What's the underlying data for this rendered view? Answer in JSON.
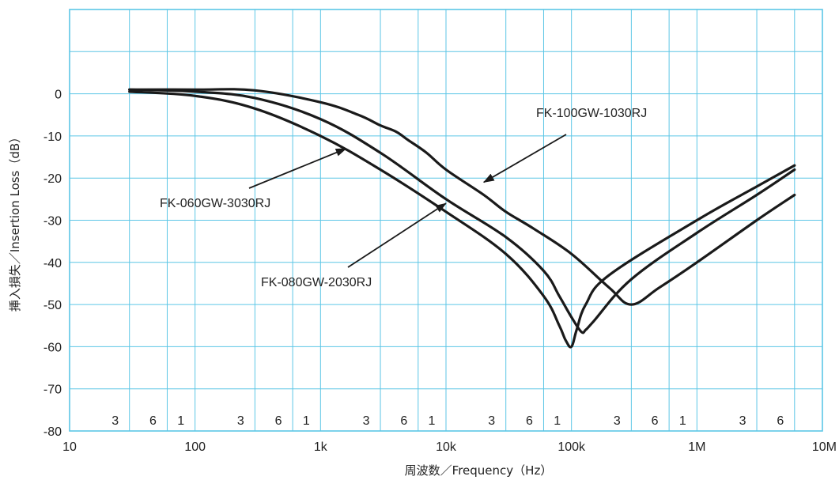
{
  "chart_data": {
    "type": "line",
    "title": "",
    "xlabel": "周波数／Frequency（Hz）",
    "ylabel": "挿入損失／Insertion Loss（dB）",
    "x_scale": "log",
    "xlim": [
      10,
      10000000
    ],
    "ylim": [
      -80,
      20
    ],
    "grid": true,
    "x_ticks": [
      {
        "value": 10,
        "label": "10"
      },
      {
        "value": 100,
        "label": "100"
      },
      {
        "value": 1000,
        "label": "1k"
      },
      {
        "value": 10000,
        "label": "10k"
      },
      {
        "value": 100000,
        "label": "100k"
      },
      {
        "value": 1000000,
        "label": "1M"
      },
      {
        "value": 10000000,
        "label": "10M"
      }
    ],
    "minor_tick_labels": [
      {
        "value": 30,
        "label": "3"
      },
      {
        "value": 60,
        "label": "6"
      },
      {
        "value": 100,
        "label": "1"
      },
      {
        "value": 300,
        "label": "3"
      },
      {
        "value": 600,
        "label": "6"
      },
      {
        "value": 1000,
        "label": "1"
      },
      {
        "value": 3000,
        "label": "3"
      },
      {
        "value": 6000,
        "label": "6"
      },
      {
        "value": 10000,
        "label": "1"
      },
      {
        "value": 30000,
        "label": "3"
      },
      {
        "value": 60000,
        "label": "6"
      },
      {
        "value": 100000,
        "label": "1"
      },
      {
        "value": 300000,
        "label": "3"
      },
      {
        "value": 600000,
        "label": "6"
      },
      {
        "value": 1000000,
        "label": "1"
      },
      {
        "value": 3000000,
        "label": "3"
      },
      {
        "value": 6000000,
        "label": "6"
      }
    ],
    "y_ticks": [
      {
        "value": 0,
        "label": "0"
      },
      {
        "value": -10,
        "label": "-10"
      },
      {
        "value": -20,
        "label": "-20"
      },
      {
        "value": -30,
        "label": "-30"
      },
      {
        "value": -40,
        "label": "-40"
      },
      {
        "value": -50,
        "label": "-50"
      },
      {
        "value": -60,
        "label": "-60"
      },
      {
        "value": -70,
        "label": "-70"
      },
      {
        "value": -80,
        "label": "-80"
      }
    ],
    "series": [
      {
        "name": "FK-100GW-1030RJ",
        "x": [
          30,
          100,
          300,
          1000,
          2000,
          3000,
          4000,
          5000,
          7000,
          10000,
          20000,
          30000,
          50000,
          100000,
          200000,
          300000,
          500000,
          1000000,
          3000000,
          6000000
        ],
        "y": [
          1,
          1,
          0.8,
          -2,
          -5,
          -7.5,
          -9,
          -11,
          -14,
          -18,
          -24,
          -28,
          -32,
          -38,
          -46,
          -50,
          -46,
          -40,
          -30,
          -24
        ]
      },
      {
        "name": "FK-080GW-2030RJ",
        "x": [
          30,
          100,
          300,
          1000,
          3000,
          10000,
          30000,
          60000,
          80000,
          100000,
          120000,
          130000,
          150000,
          300000,
          1000000,
          3000000,
          6000000
        ],
        "y": [
          1,
          0.5,
          -1,
          -6,
          -14,
          -25,
          -34,
          -42,
          -48,
          -53,
          -56.5,
          -56,
          -54,
          -44,
          -33,
          -24,
          -18
        ]
      },
      {
        "name": "FK-060GW-3030RJ",
        "x": [
          30,
          100,
          300,
          1000,
          3000,
          10000,
          30000,
          60000,
          80000,
          90000,
          100000,
          110000,
          130000,
          200000,
          1000000,
          3000000,
          6000000
        ],
        "y": [
          0.5,
          -0.5,
          -3.5,
          -10,
          -18,
          -28,
          -38,
          -48,
          -55,
          -58.5,
          -60,
          -56,
          -50,
          -43,
          -30,
          -22,
          -17
        ]
      }
    ],
    "annotations": [
      {
        "text": "FK-100GW-1030RJ",
        "target_series": 0,
        "arrow_to": [
          20000,
          -21
        ]
      },
      {
        "text": "FK-060GW-3030RJ",
        "target_series": 2,
        "arrow_to": [
          1600,
          -13
        ]
      },
      {
        "text": "FK-080GW-2030RJ",
        "target_series": 1,
        "arrow_to": [
          10000,
          -26
        ]
      }
    ],
    "colors": {
      "grid": "#5cc6e6",
      "line": "#1a1a1a",
      "text": "#222222",
      "background": "#ffffff"
    }
  }
}
